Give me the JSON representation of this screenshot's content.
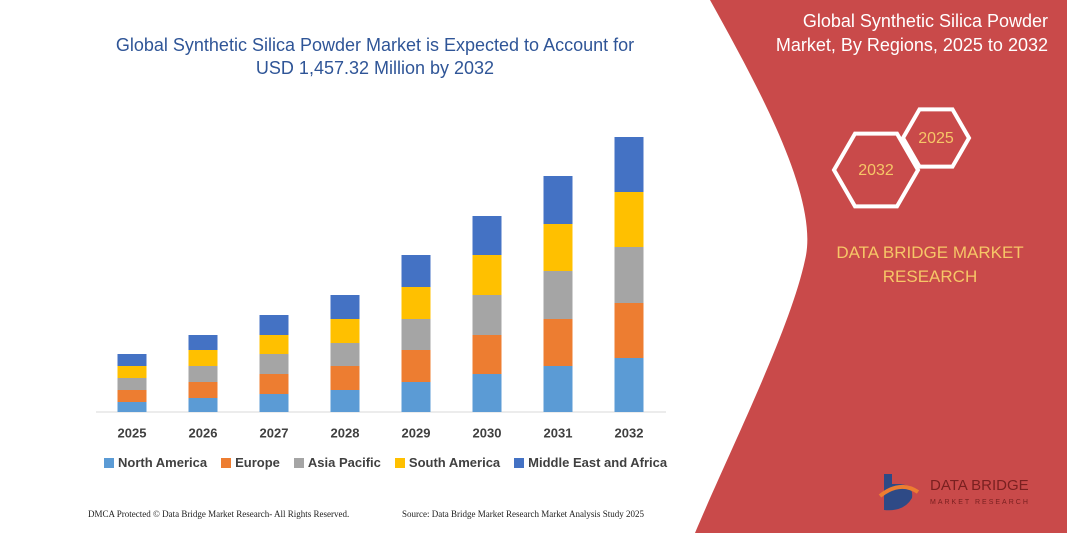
{
  "chart_data": {
    "type": "bar",
    "stacked": true,
    "title": "Global Synthetic Silica Powder Market is Expected to Account for USD 1,457.32 Million by 2032",
    "categories": [
      "2025",
      "2026",
      "2027",
      "2028",
      "2029",
      "2030",
      "2031",
      "2032"
    ],
    "series": [
      {
        "name": "North America",
        "color": "#5b9bd5",
        "values": [
          10,
          14,
          18,
          22,
          30,
          38,
          46,
          54
        ]
      },
      {
        "name": "Europe",
        "color": "#ed7d31",
        "values": [
          12,
          16,
          20,
          24,
          32,
          39,
          47,
          55
        ]
      },
      {
        "name": "Asia Pacific",
        "color": "#a5a5a5",
        "values": [
          12,
          16,
          20,
          23,
          31,
          40,
          48,
          56
        ]
      },
      {
        "name": "South America",
        "color": "#ffc000",
        "values": [
          12,
          16,
          19,
          24,
          32,
          40,
          47,
          55
        ]
      },
      {
        "name": "Middle East and Africa",
        "color": "#4472c4",
        "values": [
          12,
          15,
          20,
          24,
          32,
          39,
          48,
          55
        ]
      }
    ],
    "ylim": [
      0,
      290
    ]
  },
  "sidebar": {
    "title": "Global Synthetic Silica Powder Market, By Regions, 2025 to 2032",
    "hexagons": [
      "2025",
      "2032"
    ],
    "brand": "DATA BRIDGE MARKET RESEARCH",
    "logo": {
      "name": "DATA BRIDGE",
      "tagline": "MARKET RESEARCH"
    }
  },
  "footer": {
    "rights": "DMCA Protected © Data Bridge Market Research- All Rights Reserved.",
    "source": "Source: Data Bridge Market Research  Market Analysis Study 2025"
  }
}
